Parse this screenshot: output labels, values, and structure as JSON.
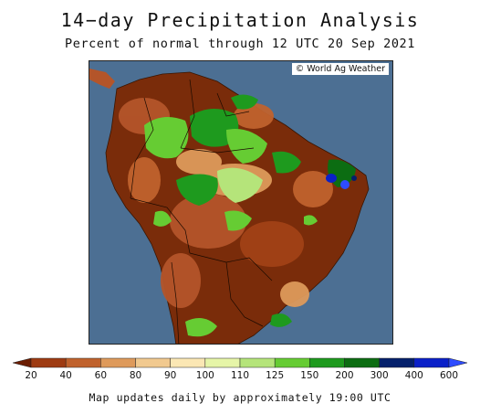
{
  "header": {
    "title": "14−day Precipitation Analysis",
    "subtitle": "Percent of normal through 12 UTC 20 Sep 2021"
  },
  "map": {
    "credit": "© World Ag Weather",
    "ocean_color": "#4c6f93",
    "land_base_color": "#7a2c0a"
  },
  "legend": {
    "ticks": [
      "20",
      "40",
      "60",
      "80",
      "90",
      "100",
      "110",
      "125",
      "150",
      "200",
      "300",
      "400",
      "600"
    ],
    "colors": [
      "#6b1d02",
      "#9e3b12",
      "#c0622d",
      "#de9a5b",
      "#f1c98f",
      "#fbe7b4",
      "#e6f5a8",
      "#b5e47a",
      "#66cc33",
      "#1e9a1e",
      "#0c6d12",
      "#04206b",
      "#0a20c8",
      "#2e4cff"
    ]
  },
  "footer": {
    "note": "Map updates daily by approximately 19:00 UTC"
  }
}
